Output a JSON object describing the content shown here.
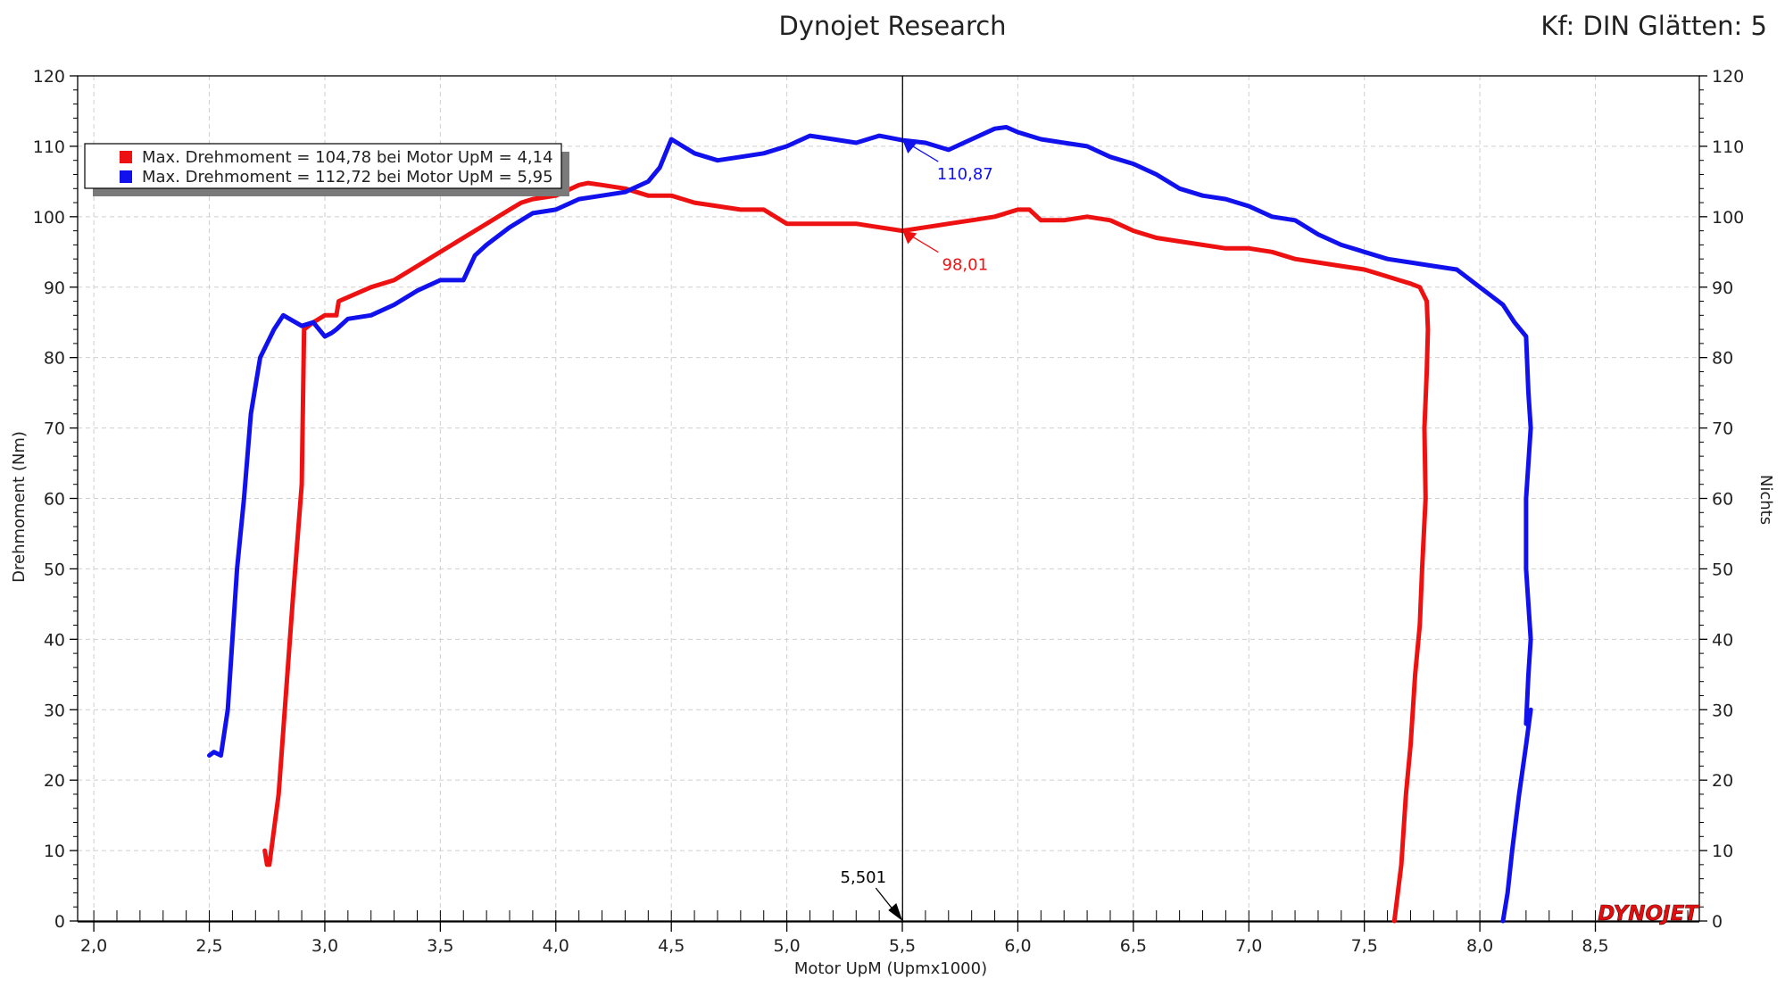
{
  "header": {
    "title": "Dynojet Research",
    "right_info": "Kf: DIN Glätten: 5"
  },
  "brand": "DYNOJET",
  "chart_data": {
    "type": "line",
    "title": "Dynojet Research",
    "xlabel": "Motor UpM (Upmx1000)",
    "ylabel": "Drehmoment (Nm)",
    "y2label": "Nichts",
    "xlim": [
      1.93,
      8.95
    ],
    "ylim": [
      0,
      120
    ],
    "xticks": [
      "2,0",
      "2,5",
      "3,0",
      "3,5",
      "4,0",
      "4,5",
      "5,0",
      "5,5",
      "6,0",
      "6,5",
      "7,0",
      "7,5",
      "8,0",
      "8,5"
    ],
    "yticks": [
      "0",
      "10",
      "20",
      "30",
      "40",
      "50",
      "60",
      "70",
      "80",
      "90",
      "100",
      "110",
      "120"
    ],
    "grid": true,
    "legend_position": "top-left",
    "legend": [
      "Max. Drehmoment = 104,78 bei Motor UpM = 4,14",
      "Max. Drehmoment = 112,72 bei Motor UpM = 5,95"
    ],
    "cursor": {
      "x": 5.501,
      "label": "5,501"
    },
    "series": [
      {
        "color": "#ee1111",
        "cursor_value": "98,01",
        "x": [
          2.74,
          2.75,
          2.76,
          2.8,
          2.86,
          2.9,
          2.91,
          2.95,
          3.0,
          3.05,
          3.06,
          3.2,
          3.3,
          3.4,
          3.5,
          3.6,
          3.7,
          3.8,
          3.85,
          3.9,
          4.0,
          4.1,
          4.14,
          4.2,
          4.3,
          4.4,
          4.5,
          4.6,
          4.7,
          4.8,
          4.9,
          5.0,
          5.1,
          5.2,
          5.3,
          5.4,
          5.5,
          5.6,
          5.7,
          5.8,
          5.9,
          6.0,
          6.05,
          6.1,
          6.2,
          6.3,
          6.4,
          6.5,
          6.6,
          6.7,
          6.8,
          6.9,
          7.0,
          7.1,
          7.2,
          7.3,
          7.4,
          7.5,
          7.6,
          7.65,
          7.7,
          7.74,
          7.77,
          7.775,
          7.77,
          7.76,
          7.765,
          7.75,
          7.74,
          7.72,
          7.7,
          7.68,
          7.66,
          7.63
        ],
        "y": [
          10,
          8,
          8,
          18,
          45,
          62,
          84,
          85,
          86,
          86,
          88,
          90,
          91,
          93,
          95,
          97,
          99,
          101,
          102,
          102.5,
          103,
          104.5,
          104.78,
          104.5,
          104,
          103,
          103,
          102,
          101.5,
          101,
          101,
          99,
          99,
          99,
          99,
          98.5,
          98,
          98.5,
          99,
          99.5,
          100,
          101,
          101,
          99.5,
          99.5,
          100,
          99.5,
          98,
          97,
          96.5,
          96,
          95.5,
          95.5,
          95,
          94,
          93.5,
          93,
          92.5,
          91.5,
          91,
          90.5,
          90,
          88,
          84,
          78,
          70,
          60,
          50,
          42,
          35,
          25,
          18,
          8,
          0
        ]
      },
      {
        "color": "#1111ee",
        "cursor_value": "110,87",
        "x": [
          2.5,
          2.52,
          2.55,
          2.58,
          2.62,
          2.65,
          2.68,
          2.72,
          2.78,
          2.82,
          2.9,
          2.95,
          3.0,
          3.03,
          3.05,
          3.1,
          3.2,
          3.3,
          3.4,
          3.5,
          3.6,
          3.65,
          3.7,
          3.8,
          3.9,
          4.0,
          4.1,
          4.2,
          4.3,
          4.4,
          4.45,
          4.5,
          4.55,
          4.6,
          4.7,
          4.8,
          4.9,
          5.0,
          5.1,
          5.2,
          5.3,
          5.4,
          5.5,
          5.6,
          5.7,
          5.8,
          5.9,
          5.95,
          6.0,
          6.1,
          6.2,
          6.3,
          6.4,
          6.5,
          6.6,
          6.7,
          6.8,
          6.9,
          7.0,
          7.1,
          7.2,
          7.3,
          7.4,
          7.5,
          7.6,
          7.7,
          7.8,
          7.9,
          8.0,
          8.1,
          8.15,
          8.2,
          8.21,
          8.22,
          8.2,
          8.2,
          8.22,
          8.21,
          8.2,
          8.22,
          8.2,
          8.17,
          8.14,
          8.12,
          8.1
        ],
        "y": [
          23.5,
          24,
          23.5,
          30,
          50,
          60,
          72,
          80,
          84,
          86,
          84.5,
          85,
          83,
          83.5,
          84,
          85.5,
          86,
          87.5,
          89.5,
          91,
          91,
          94.5,
          96,
          98.5,
          100.5,
          101,
          102.5,
          103,
          103.5,
          105,
          107,
          111,
          110,
          109,
          108,
          108.5,
          109,
          110,
          111.5,
          111,
          110.5,
          111.5,
          110.87,
          110.5,
          109.5,
          111,
          112.5,
          112.72,
          112,
          111,
          110.5,
          110,
          108.5,
          107.5,
          106,
          104,
          103,
          102.5,
          101.5,
          100,
          99.5,
          97.5,
          96,
          95,
          94,
          93.5,
          93,
          92.5,
          90,
          87.5,
          85,
          83,
          75,
          70,
          60,
          50,
          40,
          35,
          28,
          30,
          25,
          18,
          10,
          4,
          0
        ]
      }
    ]
  }
}
